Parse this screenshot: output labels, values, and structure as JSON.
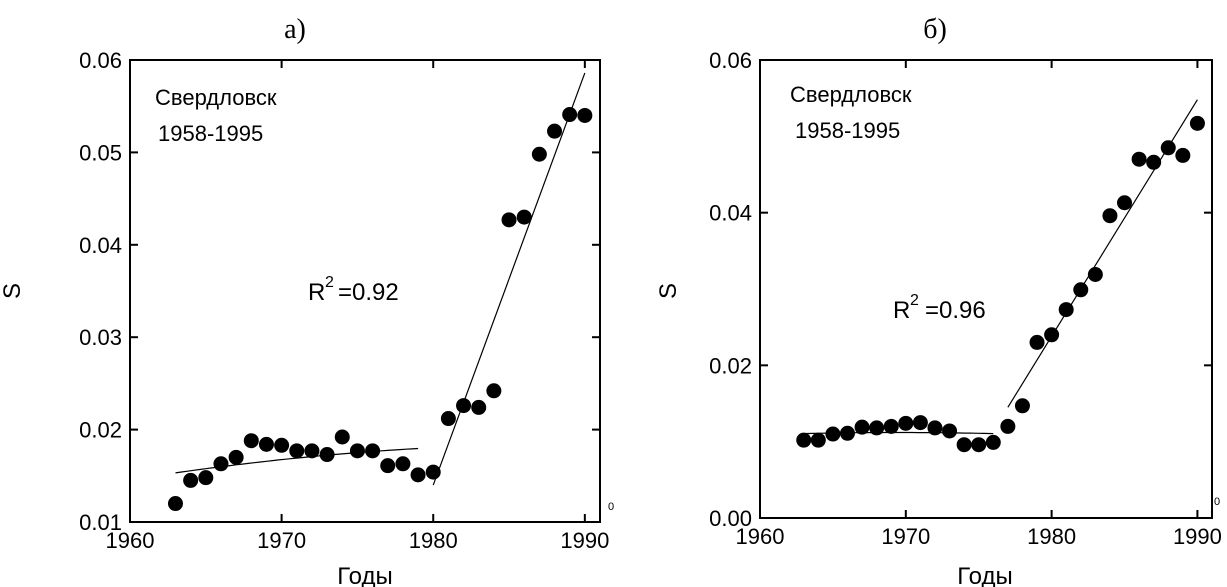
{
  "chart_data": [
    {
      "type": "scatter",
      "panel_label": "а)",
      "city": "Свердловск",
      "period": "1958-1995",
      "r2_text": "=0.92",
      "xlabel": "Годы",
      "ylabel": "S",
      "xlim": [
        1960,
        1991
      ],
      "ylim": [
        0.01,
        0.06
      ],
      "x_ticks": [
        "1960",
        "1970",
        "1980",
        "1990"
      ],
      "y_ticks": [
        "0.01",
        "0.02",
        "0.03",
        "0.04",
        "0.05",
        "0.06"
      ],
      "corner_mark": "0",
      "points": [
        {
          "x": 1963,
          "y": 0.012
        },
        {
          "x": 1964,
          "y": 0.0145
        },
        {
          "x": 1965,
          "y": 0.0148
        },
        {
          "x": 1966,
          "y": 0.0163
        },
        {
          "x": 1967,
          "y": 0.017
        },
        {
          "x": 1968,
          "y": 0.0188
        },
        {
          "x": 1969,
          "y": 0.0184
        },
        {
          "x": 1970,
          "y": 0.0183
        },
        {
          "x": 1971,
          "y": 0.0177
        },
        {
          "x": 1972,
          "y": 0.0177
        },
        {
          "x": 1973,
          "y": 0.0173
        },
        {
          "x": 1974,
          "y": 0.0192
        },
        {
          "x": 1975,
          "y": 0.0177
        },
        {
          "x": 1976,
          "y": 0.0177
        },
        {
          "x": 1977,
          "y": 0.0161
        },
        {
          "x": 1978,
          "y": 0.0163
        },
        {
          "x": 1979,
          "y": 0.0151
        },
        {
          "x": 1980,
          "y": 0.0154
        },
        {
          "x": 1981,
          "y": 0.0212
        },
        {
          "x": 1982,
          "y": 0.0226
        },
        {
          "x": 1983,
          "y": 0.0224
        },
        {
          "x": 1984,
          "y": 0.0242
        },
        {
          "x": 1985,
          "y": 0.0427
        },
        {
          "x": 1986,
          "y": 0.043
        },
        {
          "x": 1987,
          "y": 0.0498
        },
        {
          "x": 1988,
          "y": 0.0523
        },
        {
          "x": 1989,
          "y": 0.0541
        },
        {
          "x": 1990,
          "y": 0.054
        }
      ],
      "fits": [
        {
          "kind": "poly2",
          "x": [
            1963,
            1979
          ],
          "coef": [
            0.0156,
            0.000165,
            -4.5e-06
          ]
        },
        {
          "kind": "linear",
          "x1": 1980,
          "y1": 0.014,
          "x2": 1990,
          "y2": 0.0586
        }
      ]
    },
    {
      "type": "scatter",
      "panel_label": "б)",
      "city": "Свердловск",
      "period": "1958-1995",
      "r2_text": "=0.96",
      "xlabel": "Годы",
      "ylabel": "S",
      "xlim": [
        1960,
        1991
      ],
      "ylim": [
        0.0,
        0.06
      ],
      "x_ticks": [
        "1960",
        "1970",
        "1980",
        "1990"
      ],
      "y_ticks": [
        "0.00",
        "0.02",
        "0.04",
        "0.06"
      ],
      "corner_mark": "0",
      "points": [
        {
          "x": 1963,
          "y": 0.0102
        },
        {
          "x": 1964,
          "y": 0.0102
        },
        {
          "x": 1965,
          "y": 0.011
        },
        {
          "x": 1966,
          "y": 0.0111
        },
        {
          "x": 1967,
          "y": 0.0119
        },
        {
          "x": 1968,
          "y": 0.0118
        },
        {
          "x": 1969,
          "y": 0.012
        },
        {
          "x": 1970,
          "y": 0.0124
        },
        {
          "x": 1971,
          "y": 0.0125
        },
        {
          "x": 1972,
          "y": 0.0118
        },
        {
          "x": 1973,
          "y": 0.0114
        },
        {
          "x": 1974,
          "y": 0.0096
        },
        {
          "x": 1975,
          "y": 0.0096
        },
        {
          "x": 1976,
          "y": 0.0099
        },
        {
          "x": 1977,
          "y": 0.012
        },
        {
          "x": 1978,
          "y": 0.0147
        },
        {
          "x": 1979,
          "y": 0.023
        },
        {
          "x": 1980,
          "y": 0.024
        },
        {
          "x": 1981,
          "y": 0.0273
        },
        {
          "x": 1982,
          "y": 0.0299
        },
        {
          "x": 1983,
          "y": 0.0319
        },
        {
          "x": 1984,
          "y": 0.0396
        },
        {
          "x": 1985,
          "y": 0.0413
        },
        {
          "x": 1986,
          "y": 0.047
        },
        {
          "x": 1987,
          "y": 0.0466
        },
        {
          "x": 1988,
          "y": 0.0485
        },
        {
          "x": 1989,
          "y": 0.0475
        },
        {
          "x": 1990,
          "y": 0.0517
        }
      ],
      "fits": [
        {
          "kind": "poly2",
          "x": [
            1963,
            1976
          ],
          "coef": [
            0.0112,
            0.0,
            -3.5e-06
          ]
        },
        {
          "kind": "linear",
          "x1": 1977,
          "y1": 0.0145,
          "x2": 1990,
          "y2": 0.0548
        }
      ]
    }
  ]
}
